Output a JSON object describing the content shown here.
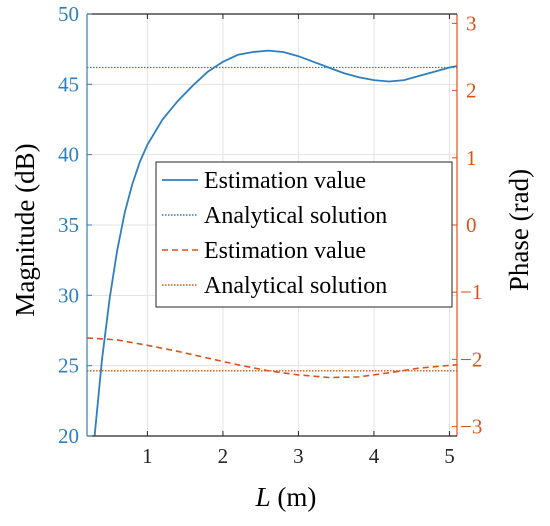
{
  "chart_data": {
    "type": "line",
    "xlabel_italic": "L",
    "xlabel_rest": " (m)",
    "ylabel_left": "Magnitude (dB)",
    "ylabel_right": "Phase (rad)",
    "xlim": [
      0.2,
      5.1
    ],
    "ylim_left": [
      20,
      50
    ],
    "ylim_right": [
      -3.14,
      3.14
    ],
    "x_ticks": [
      1,
      2,
      3,
      4,
      5
    ],
    "y_ticks_left": [
      20,
      25,
      30,
      35,
      40,
      45,
      50
    ],
    "y_ticks_right": [
      -3,
      -2,
      -1,
      0,
      1,
      2,
      3
    ],
    "grid": true,
    "legend_placement": "center",
    "colors": {
      "magnitude": "#2e7fc0",
      "phase": "#d9541a"
    },
    "series": [
      {
        "name": "Estimation value",
        "axis": "left",
        "style": "solid",
        "x": [
          0.3,
          0.4,
          0.5,
          0.6,
          0.7,
          0.8,
          0.9,
          1.0,
          1.2,
          1.4,
          1.6,
          1.8,
          2.0,
          2.2,
          2.4,
          2.6,
          2.8,
          3.0,
          3.2,
          3.4,
          3.6,
          3.8,
          4.0,
          4.2,
          4.4,
          4.6,
          4.8,
          5.0,
          5.1
        ],
        "y": [
          20.0,
          25.5,
          29.8,
          33.2,
          35.9,
          37.9,
          39.5,
          40.7,
          42.5,
          43.8,
          44.9,
          45.9,
          46.6,
          47.1,
          47.3,
          47.4,
          47.3,
          47.0,
          46.6,
          46.2,
          45.8,
          45.5,
          45.3,
          45.2,
          45.3,
          45.6,
          45.9,
          46.2,
          46.3
        ]
      },
      {
        "name": "Analytical solution",
        "axis": "left",
        "style": "dotted",
        "x": [
          0.2,
          5.1
        ],
        "y": [
          46.2,
          46.2
        ]
      },
      {
        "name": "Estimation value",
        "axis": "right",
        "style": "dashed",
        "x": [
          0.2,
          0.6,
          1.0,
          1.4,
          1.8,
          2.2,
          2.6,
          3.0,
          3.4,
          3.8,
          4.2,
          4.6,
          5.0,
          5.1
        ],
        "y": [
          -1.68,
          -1.71,
          -1.79,
          -1.88,
          -1.98,
          -2.08,
          -2.17,
          -2.23,
          -2.27,
          -2.26,
          -2.2,
          -2.13,
          -2.09,
          -2.08
        ]
      },
      {
        "name": "Analytical solution",
        "axis": "right",
        "style": "dotted",
        "x": [
          0.2,
          5.1
        ],
        "y": [
          -2.17,
          -2.17
        ]
      }
    ]
  }
}
